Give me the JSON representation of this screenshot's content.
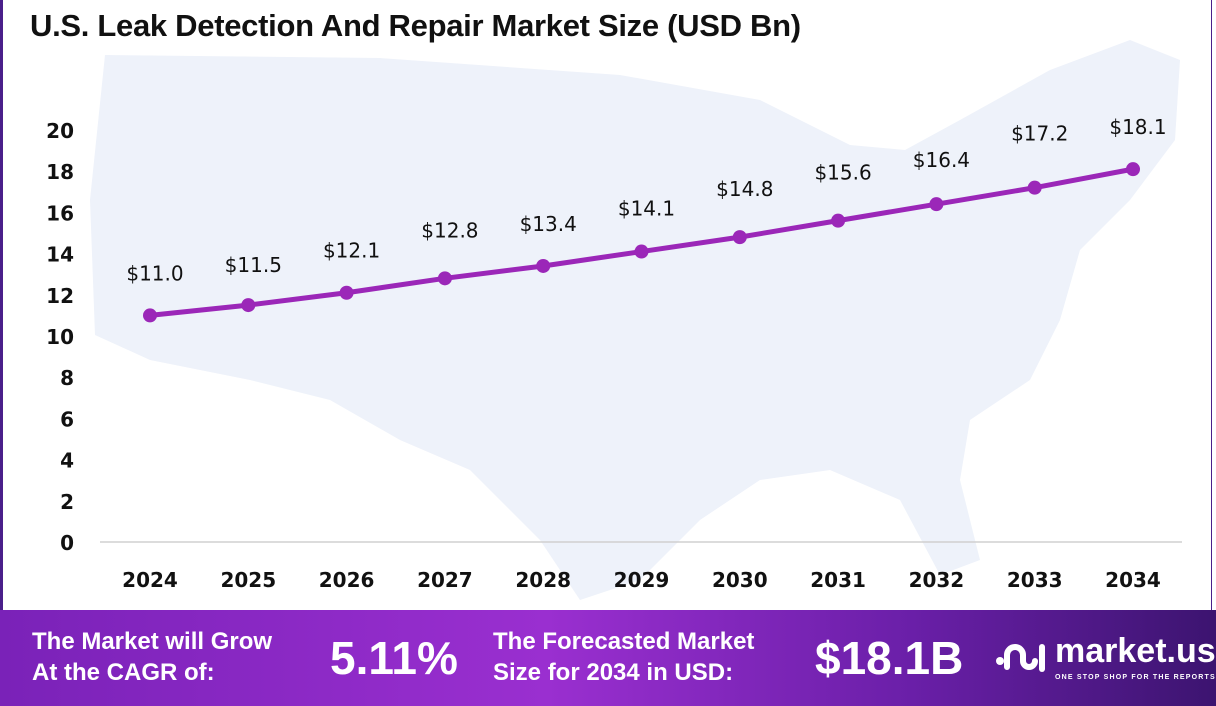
{
  "title": "U.S. Leak Detection And Repair Market Size (USD Bn)",
  "colors": {
    "line": "#9b27b8",
    "footer_start": "#7a22b8",
    "footer_end": "#3c1470",
    "map": "#eef2fa"
  },
  "chart_data": {
    "type": "line",
    "title": "U.S. Leak Detection And Repair Market Size (USD Bn)",
    "categories": [
      "2024",
      "2025",
      "2026",
      "2027",
      "2028",
      "2029",
      "2030",
      "2031",
      "2032",
      "2033",
      "2034"
    ],
    "values": [
      11.0,
      11.5,
      12.1,
      12.8,
      13.4,
      14.1,
      14.8,
      15.6,
      16.4,
      17.2,
      18.1
    ],
    "data_labels": [
      "$11.0",
      "$11.5",
      "$12.1",
      "$12.8",
      "$13.4",
      "$14.1",
      "$14.8",
      "$15.6",
      "$16.4",
      "$17.2",
      "$18.1"
    ],
    "yticks": [
      "0",
      "2",
      "4",
      "6",
      "8",
      "10",
      "12",
      "14",
      "16",
      "18",
      "20"
    ],
    "ylim": [
      0,
      20
    ],
    "grid": false,
    "legend": "none"
  },
  "footer": {
    "cagr_label_1": "The Market will Grow",
    "cagr_label_2": "At the CAGR of:",
    "cagr_value": "5.11%",
    "forecast_label_1": "The Forecasted Market",
    "forecast_label_2": "Size for 2034 in USD:",
    "forecast_value": "$18.1B",
    "logo_name": "market.us",
    "logo_tagline": "ONE STOP SHOP FOR THE REPORTS"
  }
}
